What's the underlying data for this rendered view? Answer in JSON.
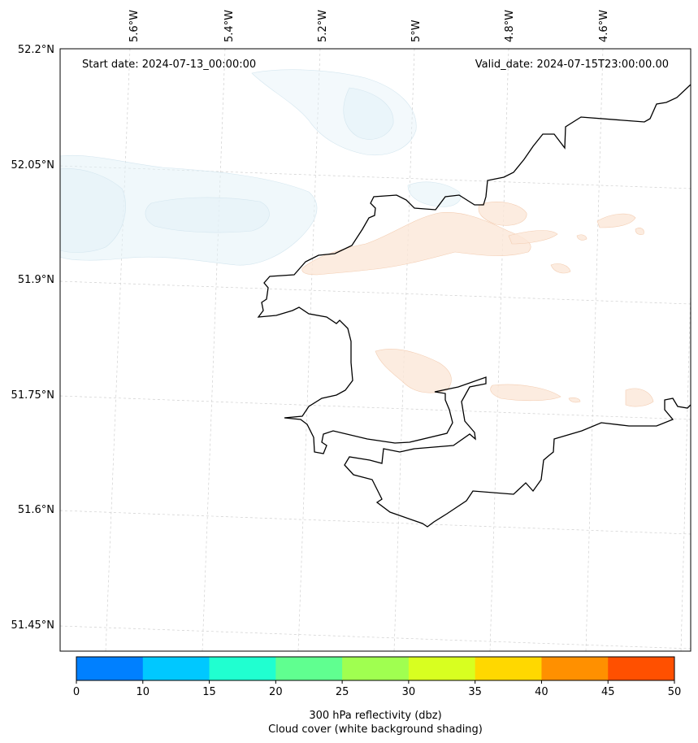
{
  "annotations": {
    "start_date": "Start date: 2024-07-13_00:00:00",
    "valid_date": "Valid_date: 2024-07-15T23:00:00.00"
  },
  "lon_labels": [
    "5.6°W",
    "5.4°W",
    "5.2°W",
    "5°W",
    "4.8°W",
    "4.6°W"
  ],
  "lat_labels": [
    "52.2°N",
    "52.05°N",
    "51.9°N",
    "51.75°N",
    "51.6°N",
    "51.45°N"
  ],
  "colorbar": {
    "colors": [
      "#0080ff",
      "#00c8ff",
      "#20ffd0",
      "#60ff90",
      "#a0ff50",
      "#d8ff20",
      "#ffd800",
      "#ff9000",
      "#ff5000"
    ],
    "ticks": [
      "0",
      "10",
      "15",
      "20",
      "25",
      "30",
      "35",
      "40",
      "45",
      "50"
    ],
    "label_line1": "300 hPa reflectivity (dbz)",
    "label_line2": "Cloud cover (white background shading)"
  }
}
